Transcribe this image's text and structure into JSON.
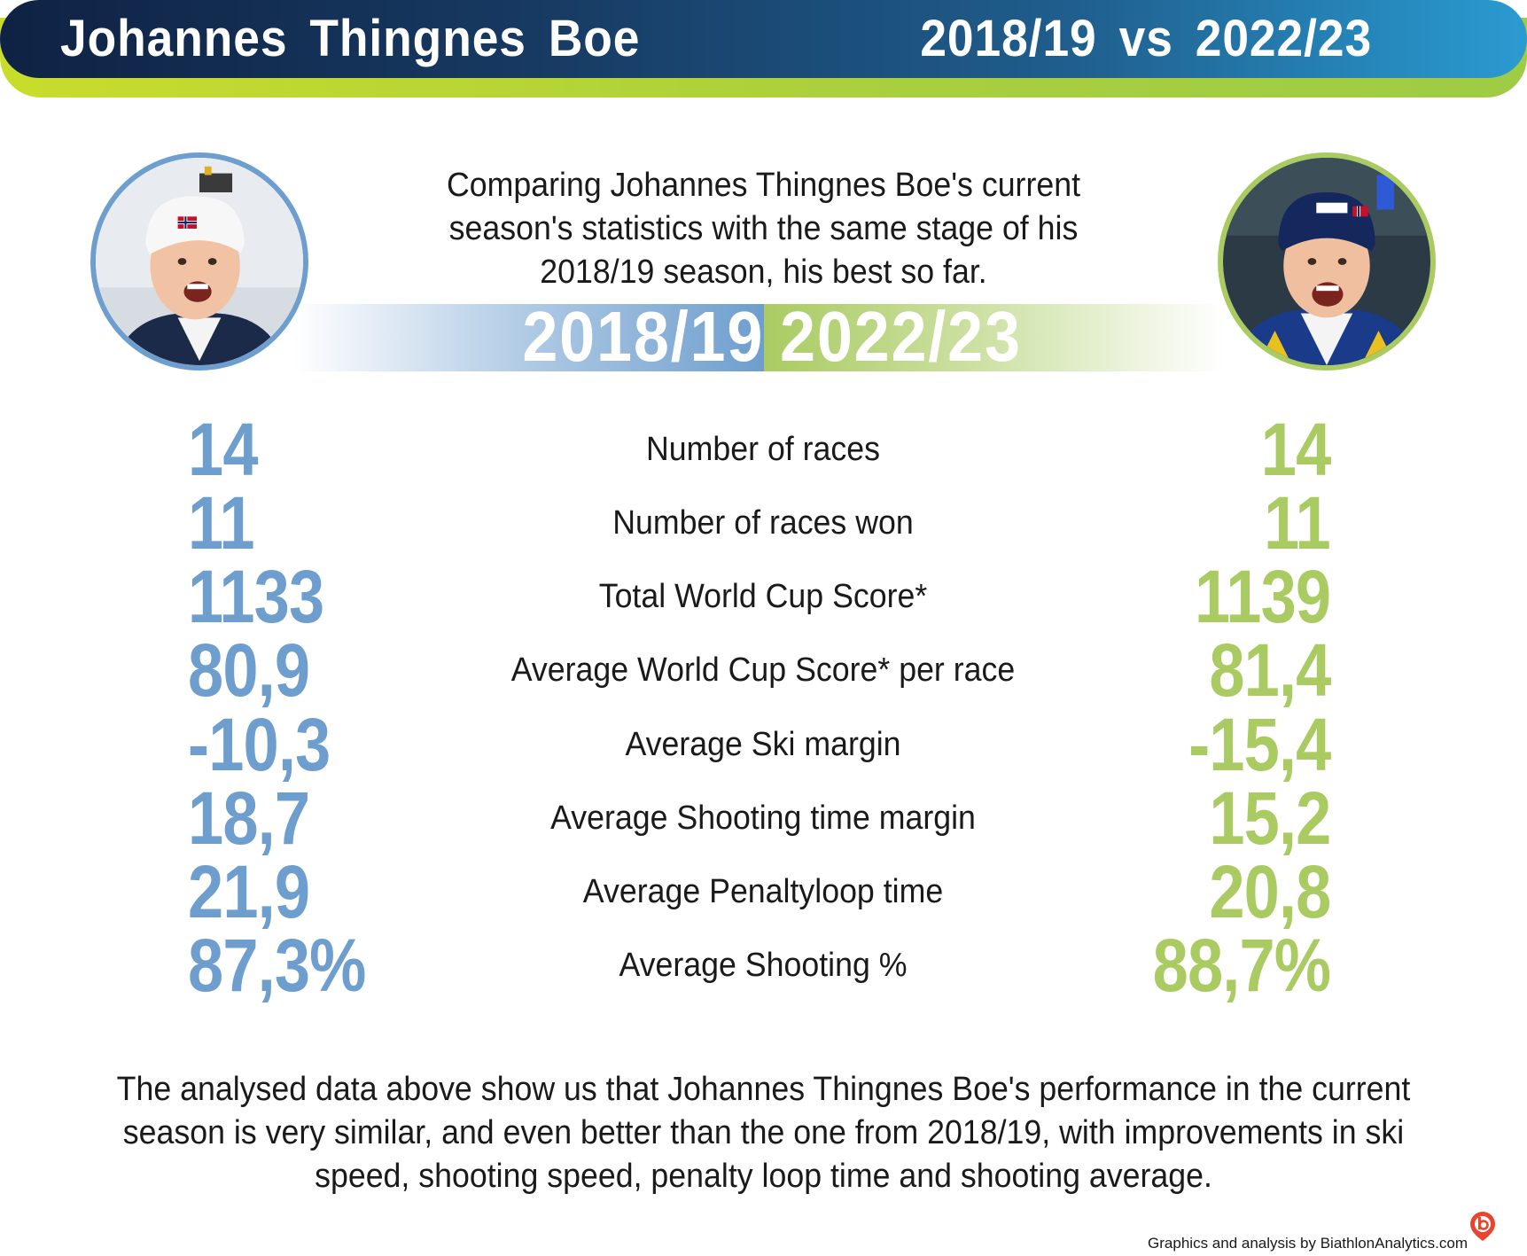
{
  "header": {
    "title": "Johannes  Thingnes  Boe",
    "comparison": "2018/19  vs  2022/23"
  },
  "intro": {
    "text": "Comparing Johannes Thingnes Boe's current season's statistics with the same stage of his 2018/19 season, his best so far."
  },
  "seasons": {
    "left": "2018/19",
    "right": "2022/23"
  },
  "colors": {
    "left_accent": "#6e9ece",
    "right_accent": "#a9cb62",
    "header_dark": "#0f2244",
    "header_light": "#2a9bd1",
    "header_underline": "#c9dc2c"
  },
  "stats": [
    {
      "label": "Number of races",
      "left": "14",
      "right": "14"
    },
    {
      "label": "Number of races won",
      "left": "11",
      "right": "11"
    },
    {
      "label": "Total World Cup Score*",
      "left": "1133",
      "right": "1139"
    },
    {
      "label": "Average World Cup Score* per race",
      "left": "80,9",
      "right": "81,4"
    },
    {
      "label": "Average Ski margin",
      "left": "-10,3",
      "right": "-15,4"
    },
    {
      "label": "Average Shooting time margin",
      "left": "18,7",
      "right": "15,2"
    },
    {
      "label": "Average Penaltyloop time",
      "left": "21,9",
      "right": "20,8"
    },
    {
      "label": "Average Shooting %",
      "left": "87,3%",
      "right": "88,7%"
    }
  ],
  "conclusion": {
    "text": "The analysed data above show us that Johannes Thingnes Boe's performance in the current season is very similar, and even better than the one from 2018/19, with improvements in ski speed,  shooting speed, penalty loop time and shooting average."
  },
  "credit": {
    "text": "Graphics and analysis by BiathlonAnalytics.com"
  },
  "icons": {
    "left_photo": "athlete-photo-2018",
    "right_photo": "athlete-photo-2022",
    "logo": "biathlon-analytics-logo"
  }
}
